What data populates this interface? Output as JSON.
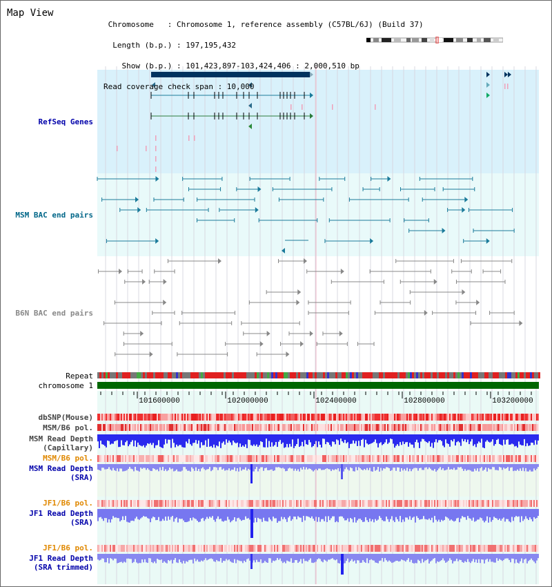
{
  "title": "Map View",
  "header": {
    "chromosome_line": " Chromosome   : Chromosome 1, reference assembly (C57BL/6J) (Build 37)",
    "length_line": "  Length (b.p.) : 197,195,432",
    "show_line": "    Show (b.p.) : 101,423,897-103,424,406 : 2,000,510 bp",
    "coverage_line": "Read coverage check span : 10,000"
  },
  "tracks": {
    "refseq": "RefSeq Genes",
    "msm_bac": "MSM BAC end pairs",
    "b6n_bac": "B6N BAC end pairs",
    "repeat": "Repeat",
    "chromosome": "chromosome 1",
    "dbsnp": "dbSNP(Mouse)",
    "msm_b6_pol_1": "MSM/B6 pol.",
    "msm_read_depth_cap_1": "MSM Read Depth",
    "msm_read_depth_cap_2": "(Capillary)",
    "msm_b6_pol_2": "MSM/B6 pol.",
    "msm_read_depth_sra_1": "MSM Read Depth",
    "msm_read_depth_sra_2": "(SRA)",
    "jf1_b6_pol_1": "JF1/B6 pol.",
    "jf1_read_depth_sra_1": "JF1 Read Depth",
    "jf1_read_depth_sra_2": "(SRA)",
    "jf1_b6_pol_2": "JF1/B6 pol.",
    "jf1_read_depth_trim_1": "JF1 Read Depth",
    "jf1_read_depth_trim_2": "(SRA trimmed)"
  },
  "axis_ticks": [
    "101600000",
    "102000000",
    "102400000",
    "102800000",
    "103200000"
  ],
  "colors": {
    "refseq_bg": "#d9f1fb",
    "msm_bg": "#e9fafa",
    "gene_dark": "#00335f",
    "bac_teal": "#1a7a9a",
    "bac_gray": "#888888",
    "repeat_red": "#e02020",
    "chrom_green": "#006600",
    "depth_blue": "#2222ee",
    "label_blue": "#0000aa",
    "label_orange": "#e08800",
    "label_teal": "#006688"
  }
}
